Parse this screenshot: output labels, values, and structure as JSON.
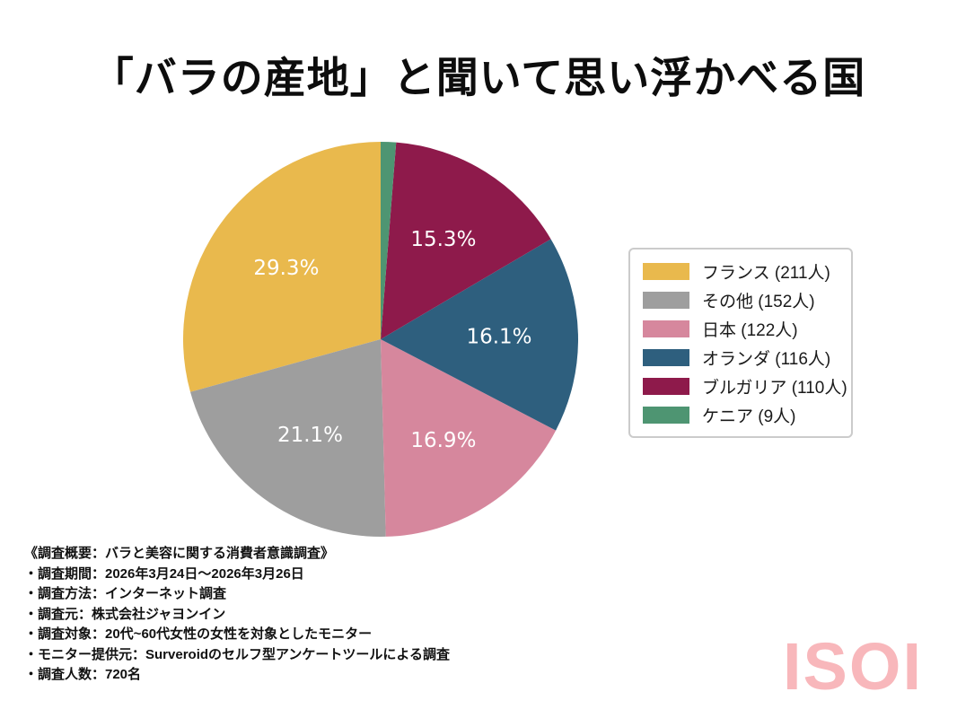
{
  "chart_data": {
    "type": "pie",
    "title": "「バラの産地」と聞いて思い浮かべる国",
    "total_respondents": 720,
    "start_angle_deg": 90,
    "direction": "counterclockwise",
    "label_radius_ratio": 0.6,
    "legend_position": "right",
    "segments": [
      {
        "label": "フランス",
        "count": 211,
        "pct_label": "29.3%",
        "color": "#e9b94d",
        "show_pct": true,
        "legend_label": "フランス (211人)"
      },
      {
        "label": "その他",
        "count": 152,
        "pct_label": "21.1%",
        "color": "#9e9e9e",
        "show_pct": true,
        "legend_label": "その他 (152人)"
      },
      {
        "label": "日本",
        "count": 122,
        "pct_label": "16.9%",
        "color": "#d6879d",
        "show_pct": true,
        "legend_label": "日本 (122人)"
      },
      {
        "label": "オランダ",
        "count": 116,
        "pct_label": "16.1%",
        "color": "#2e5f7e",
        "show_pct": true,
        "legend_label": "オランダ (116人)"
      },
      {
        "label": "ブルガリア",
        "count": 110,
        "pct_label": "15.3%",
        "color": "#8e1a4b",
        "show_pct": true,
        "legend_label": "ブルガリア (110人)"
      },
      {
        "label": "ケニア",
        "count": 9,
        "pct_label": "1.3%",
        "color": "#4e9572",
        "show_pct": false,
        "legend_label": "ケニア (9人)"
      }
    ]
  },
  "footer": {
    "lines": [
      "《調査概要：バラと美容に関する消費者意識調査》",
      "・調査期間：2026年3月24日～2026年3月26日",
      "・調査方法：インターネット調査",
      "・調査元：株式会社ジャヨンイン",
      "・調査対象：20代~60代女性の女性を対象としたモニター",
      "・モニター提供元：Surveroidのセルフ型アンケートツールによる調査",
      "・調査人数：720名"
    ]
  },
  "logo": {
    "text": "ISOI",
    "color": "#f8b7bb"
  }
}
